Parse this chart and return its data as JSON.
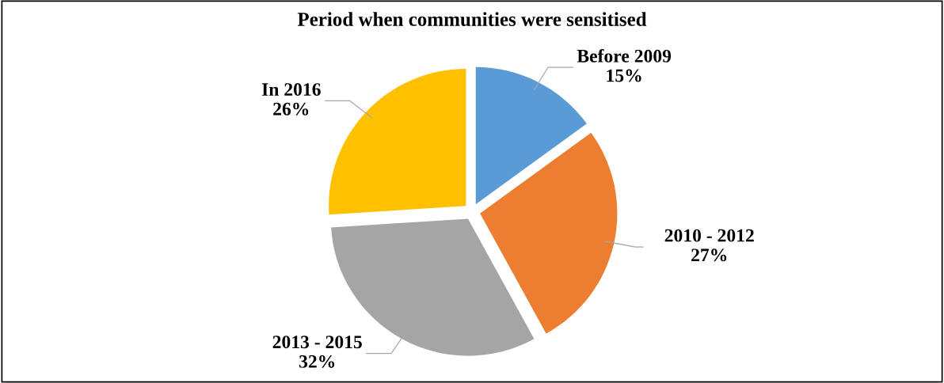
{
  "chart_data": {
    "type": "pie",
    "title": "Period when communities were sensitised",
    "categories": [
      "Before 2009",
      "2010 - 2012",
      "2013 - 2015",
      "In 2016"
    ],
    "values": [
      15,
      27,
      32,
      26
    ],
    "value_labels": [
      "15%",
      "27%",
      "32%",
      "26%"
    ],
    "colors": [
      "#5b9bd5",
      "#ed7d31",
      "#a5a5a5",
      "#ffc000"
    ],
    "legend": false
  }
}
